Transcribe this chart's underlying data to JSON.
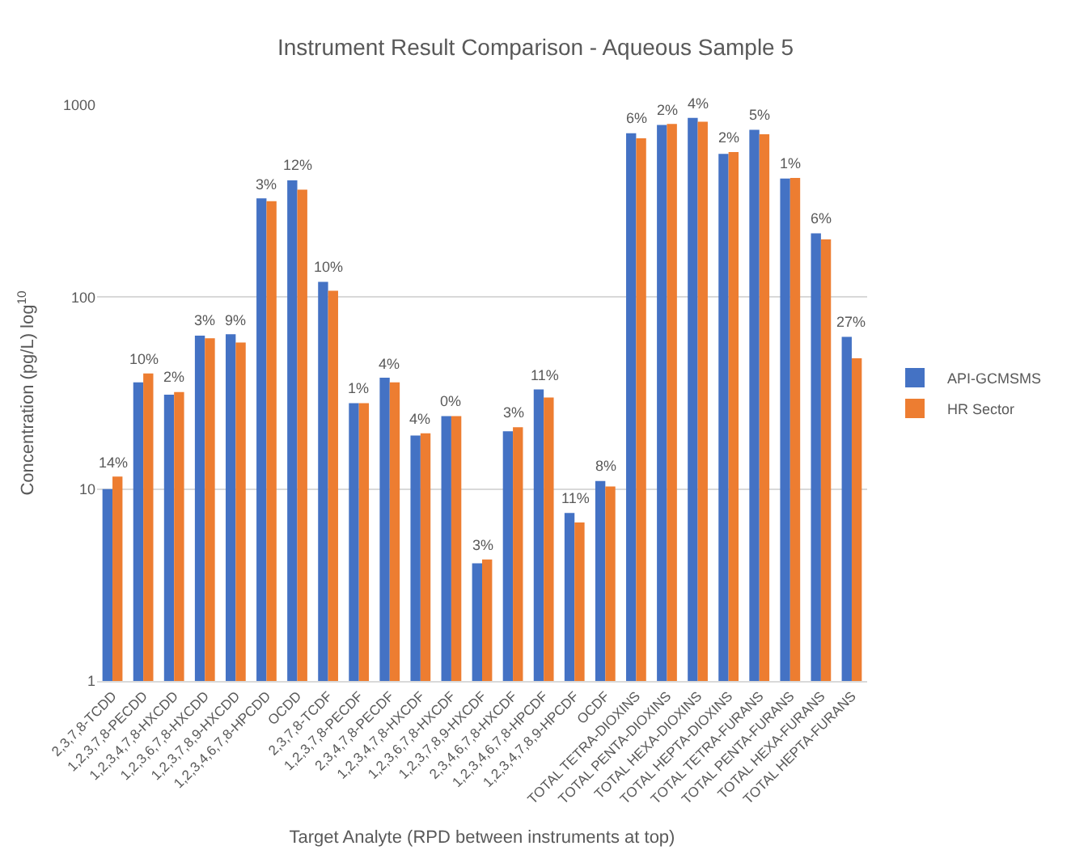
{
  "chart_data": {
    "type": "bar",
    "title": "Instrument Result Comparison - Aqueous Sample 5",
    "xlabel": "Target Analyte (RPD between instruments at top)",
    "ylabel": "Concentration (pg/L) log$^{10}$",
    "categories": [
      "2,3,7,8-TCDD",
      "1,2,3,7,8-PECDD",
      "1,2,3,4,7,8-HXCDD",
      "1,2,3,6,7,8-HXCDD",
      "1,2,3,7,8,9-HXCDD",
      "1,2,3,4,6,7,8-HPCDD",
      "OCDD",
      "2,3,7,8-TCDF",
      "1,2,3,7,8-PECDF",
      "2,3,4,7,8-PECDF",
      "1,2,3,4,7,8-HXCDF",
      "1,2,3,6,7,8-HXCDF",
      "1,2,3,7,8,9-HXCDF",
      "2,3,4,6,7,8-HXCDF",
      "1,2,3,4,6,7,8-HPCDF",
      "1,2,3,4,7,8,9-HPCDF",
      "OCDF",
      "TOTAL TETRA-DIOXINS",
      "TOTAL PENTA-DIOXINS",
      "TOTAL HEXA-DIOXINS",
      "TOTAL HEPTA-DIOXINS",
      "TOTAL TETRA-FURANS",
      "TOTAL PENTA-FURANS",
      "TOTAL HEXA-FURANS",
      "TOTAL HEPTA-FURANS"
    ],
    "series": [
      {
        "name": "API-GCMSMS",
        "color": "#4472c4",
        "values": [
          10,
          36,
          31,
          63,
          64,
          327,
          406,
          120,
          28,
          38,
          19,
          24,
          4.1,
          20,
          33,
          7.5,
          11,
          713,
          788,
          859,
          558,
          743,
          415,
          215,
          62
        ]
      },
      {
        "name": "HR Sector",
        "color": "#ed7d31",
        "values": [
          11.6,
          40,
          32,
          61,
          58,
          316,
          363,
          108,
          28,
          36,
          19.5,
          24,
          4.3,
          21,
          30,
          6.7,
          10.3,
          672,
          798,
          820,
          570,
          705,
          418,
          200,
          48
        ]
      }
    ],
    "annotations": [
      {
        "text": "14%",
        "x": "2,3,7,8-TCDD",
        "y": 11.6
      },
      {
        "text": "10%",
        "x": "1,2,3,7,8-PECDD",
        "y": 40
      },
      {
        "text": "2%",
        "x": "1,2,3,4,7,8-HXCDD",
        "y": 32
      },
      {
        "text": "3%",
        "x": "1,2,3,6,7,8-HXCDD",
        "y": 63
      },
      {
        "text": "9%",
        "x": "1,2,3,7,8,9-HXCDD",
        "y": 64
      },
      {
        "text": "3%",
        "x": "1,2,3,4,6,7,8-HPCDD",
        "y": 327
      },
      {
        "text": "12%",
        "x": "OCDD",
        "y": 406
      },
      {
        "text": "10%",
        "x": "2,3,7,8-TCDF",
        "y": 120
      },
      {
        "text": "1%",
        "x": "1,2,3,7,8-PECDF",
        "y": 28
      },
      {
        "text": "4%",
        "x": "2,3,4,7,8-PECDF",
        "y": 38
      },
      {
        "text": "4%",
        "x": "1,2,3,4,7,8-HXCDF",
        "y": 19.5
      },
      {
        "text": "0%",
        "x": "1,2,3,6,7,8-HXCDF",
        "y": 24
      },
      {
        "text": "3%",
        "x": "1,2,3,7,8,9-HXCDF",
        "y": 4.3
      },
      {
        "text": "3%",
        "x": "2,3,4,6,7,8-HXCDF",
        "y": 21
      },
      {
        "text": "11%",
        "x": "1,2,3,4,6,7,8-HPCDF",
        "y": 33
      },
      {
        "text": "11%",
        "x": "1,2,3,4,7,8,9-HPCDF",
        "y": 7.5
      },
      {
        "text": "8%",
        "x": "OCDF",
        "y": 11
      },
      {
        "text": "6%",
        "x": "TOTAL TETRA-DIOXINS",
        "y": 713
      },
      {
        "text": "2%",
        "x": "TOTAL PENTA-DIOXINS",
        "y": 798
      },
      {
        "text": "4%",
        "x": "TOTAL HEXA-DIOXINS",
        "y": 859
      },
      {
        "text": "2%",
        "x": "TOTAL HEPTA-DIOXINS",
        "y": 570
      },
      {
        "text": "5%",
        "x": "TOTAL TETRA-FURANS",
        "y": 743
      },
      {
        "text": "1%",
        "x": "TOTAL PENTA-FURANS",
        "y": 418
      },
      {
        "text": "6%",
        "x": "TOTAL HEXA-FURANS",
        "y": 215
      },
      {
        "text": "27%",
        "x": "TOTAL HEPTA-FURANS",
        "y": 62
      }
    ],
    "log": true,
    "ylim": [
      1,
      1000
    ],
    "yticks": [
      1,
      10,
      100,
      1000
    ],
    "grid": "y",
    "legend": "right"
  }
}
